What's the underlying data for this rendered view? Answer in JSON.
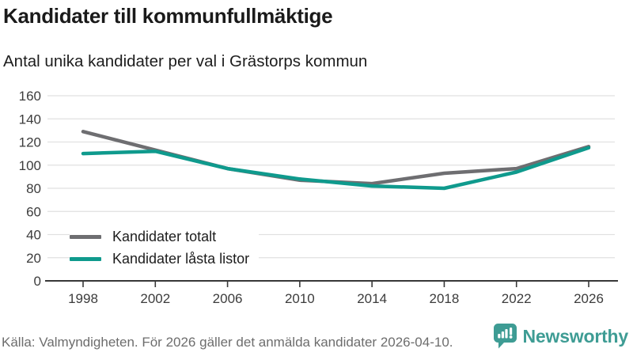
{
  "header": {
    "title": "Kandidater till kommunfullmäktige",
    "subtitle": "Antal unika kandidater per val i Grästorps kommun"
  },
  "chart_data": {
    "type": "line",
    "title": "Kandidater till kommunfullmäktige",
    "subtitle": "Antal unika kandidater per val i Grästorps kommun",
    "categories": [
      "1998",
      "2002",
      "2006",
      "2010",
      "2014",
      "2018",
      "2022",
      "2026"
    ],
    "series": [
      {
        "name": "Kandidater totalt",
        "color": "#6e6e71",
        "values": [
          129,
          113,
          97,
          87,
          84,
          93,
          97,
          116
        ]
      },
      {
        "name": "Kandidater låsta listor",
        "color": "#0f9a8d",
        "values": [
          110,
          112,
          97,
          88,
          82,
          80,
          94,
          115
        ]
      }
    ],
    "xlabel": "",
    "ylabel": "",
    "ylim": [
      0,
      160
    ],
    "yticks": [
      0,
      20,
      40,
      60,
      80,
      100,
      120,
      140,
      160
    ],
    "grid": true,
    "legend_position": "bottom-left-inside"
  },
  "footer": {
    "source": "Källa: Valmyndigheten. För 2026 gäller det anmälda kandidater 2026-04-10.",
    "brand": "Newsworthy"
  },
  "colors": {
    "grid": "#e1e1e1",
    "axis": "#383838",
    "axis_text": "#3c3c3c",
    "series_total": "#6e6e71",
    "series_locked": "#0f9a8d",
    "brand_teal": "#3e9c94",
    "source_text": "#6d6d6d"
  }
}
